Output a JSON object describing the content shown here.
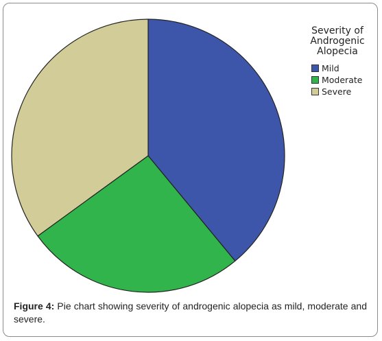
{
  "chart_data": {
    "type": "pie",
    "categories": [
      "Mild",
      "Moderate",
      "Severe"
    ],
    "values": [
      39,
      26,
      35
    ],
    "colors": [
      "#3d56aa",
      "#31b44b",
      "#d2cc98"
    ],
    "legend_title": [
      "Severity of",
      "Androgenic",
      "Alopecia"
    ],
    "legend_position": "top-right",
    "start_angle_deg": 0,
    "direction": "clockwise"
  },
  "caption": {
    "label": "Figure 4:",
    "text": " Pie chart showing severity of androgenic alopecia as mild, moderate and severe."
  },
  "icons": {
    "legend_swatch_shape": "square"
  }
}
